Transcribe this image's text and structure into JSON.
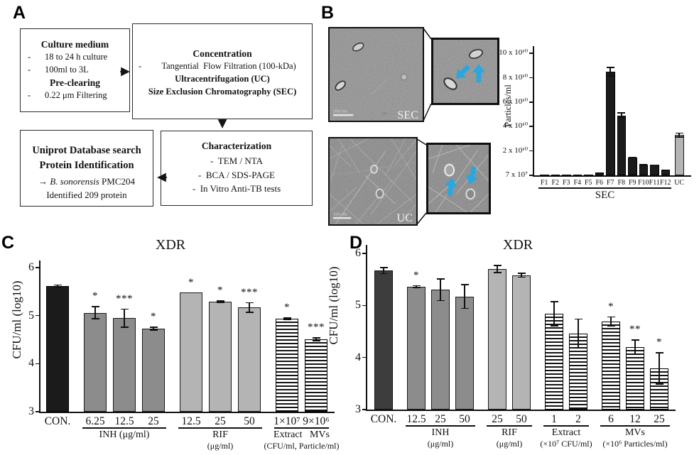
{
  "colors": {
    "bar_black": "#1b1b1b",
    "bar_dark_control": "#3d3d3d",
    "bar_dark_gray": "#8c8c8c",
    "bar_light_gray": "#b4b4b4",
    "hatch_stripe": "#141414",
    "vesicle_arrow_blue": "#2AA7DF",
    "em_background": "#7d7d7d"
  },
  "panels": {
    "a": {
      "label": "A",
      "dash": "-",
      "box_culture": {
        "title": "Culture medium",
        "item1": "18 to 24 h culture",
        "item2": "100ml to 3L",
        "subtitle": "Pre-clearing",
        "item3": "0.22 μm Filtering"
      },
      "box_concentration": {
        "title": "Concentration",
        "item1": "Tangential  Flow Filtration (100-kDa)",
        "line2": "Ultracentrifugation (UC)",
        "line3": "Size Exclusion Chromatography (SEC)"
      },
      "box_uniprot": {
        "line1": "Uniprot Database search",
        "line2": "Protein Identification",
        "arrow": "→",
        "species": "B. sonorensis",
        "strain": " PMC204",
        "line4": "Identified 209 protein"
      },
      "box_characterization": {
        "title": "Characterization",
        "item1": "TEM / NTA",
        "item2": "BCA / SDS-PAGE",
        "item3": "In Vitro Anti-TB tests"
      }
    },
    "b": {
      "label": "B",
      "sec_label": "SEC",
      "sec_scale": "200 nm",
      "uc_label": "UC",
      "uc_scale": "100 nm",
      "ylabel": "Particles/ml"
    },
    "c": {
      "label": "C",
      "title": "XDR",
      "ylabel": "CFU/ml (log10)"
    },
    "d": {
      "label": "D",
      "title": "XDR",
      "ylabel": "CFU/ml (log10)"
    }
  },
  "chart_data": [
    {
      "id": "chart-b",
      "type": "bar",
      "title": "",
      "ylabel": "Particles/ml",
      "ylim": [
        0,
        10
      ],
      "unit_note": "bar values in ×10¹⁰ particles/ml; baseline tick is 7 × 10⁷",
      "yticks": [
        {
          "v": 10,
          "label": "10 x 10¹⁰"
        },
        {
          "v": 8,
          "label": "8 x 10¹⁰"
        },
        {
          "v": 6,
          "label": "6 x 10¹⁰"
        },
        {
          "v": 4,
          "label": "4 x 10¹⁰"
        },
        {
          "v": 2,
          "label": "2 x 10¹⁰"
        },
        {
          "v": 0,
          "label": "7 x 10⁷"
        }
      ],
      "bars": [
        {
          "label": "F1",
          "value": 0.06,
          "err": 0,
          "sig": "",
          "style": "black",
          "group": "SEC"
        },
        {
          "label": "F2",
          "value": 0.08,
          "err": 0,
          "sig": "",
          "style": "black",
          "group": "SEC"
        },
        {
          "label": "F3",
          "value": 0.05,
          "err": 0,
          "sig": "",
          "style": "black",
          "group": "SEC"
        },
        {
          "label": "F4",
          "value": 0.07,
          "err": 0,
          "sig": "",
          "style": "black",
          "group": "SEC"
        },
        {
          "label": "F5",
          "value": 0.05,
          "err": 0,
          "sig": "",
          "style": "black",
          "group": "SEC"
        },
        {
          "label": "F6",
          "value": 0.25,
          "err": 0,
          "sig": "",
          "style": "black",
          "group": "SEC"
        },
        {
          "label": "F7",
          "value": 8.5,
          "err": 0.4,
          "sig": "",
          "style": "black",
          "group": "SEC"
        },
        {
          "label": "F8",
          "value": 4.9,
          "err": 0.25,
          "sig": "",
          "style": "black",
          "group": "SEC"
        },
        {
          "label": "F9",
          "value": 1.45,
          "err": 0.07,
          "sig": "",
          "style": "black",
          "group": "SEC"
        },
        {
          "label": "F10",
          "value": 0.9,
          "err": 0.05,
          "sig": "",
          "style": "black",
          "group": "SEC"
        },
        {
          "label": "F11",
          "value": 0.85,
          "err": 0.05,
          "sig": "",
          "style": "black",
          "group": "SEC"
        },
        {
          "label": "F12",
          "value": 0.45,
          "err": 0,
          "sig": "",
          "style": "black",
          "group": "SEC"
        },
        {
          "label": "UC",
          "value": 3.3,
          "err": 0.2,
          "sig": "",
          "style": "lightgray",
          "group": "UC"
        }
      ],
      "groups": [
        {
          "name": "SEC",
          "sub": "",
          "from": 0,
          "to": 11
        }
      ]
    },
    {
      "id": "chart-c",
      "type": "bar",
      "title": "XDR",
      "ylabel": "CFU/ml (log10)",
      "ylim": [
        3,
        6
      ],
      "yticks": [
        {
          "v": 6,
          "label": "6"
        },
        {
          "v": 5,
          "label": "5"
        },
        {
          "v": 4,
          "label": "4"
        },
        {
          "v": 3,
          "label": "3"
        }
      ],
      "bars": [
        {
          "label": "CON.",
          "value": 5.61,
          "err": 0.04,
          "sig": "",
          "style": "black",
          "group": "CON"
        },
        {
          "label": "6.25",
          "value": 5.06,
          "err": 0.14,
          "sig": "*",
          "style": "darkgray",
          "group": "INH"
        },
        {
          "label": "12.5",
          "value": 4.95,
          "err": 0.2,
          "sig": "***",
          "style": "darkgray",
          "group": "INH"
        },
        {
          "label": "25",
          "value": 4.73,
          "err": 0.04,
          "sig": "*",
          "style": "darkgray",
          "group": "INH"
        },
        {
          "label": "12.5",
          "value": 5.48,
          "err": 0,
          "sig": "*",
          "style": "lightgray",
          "group": "RIF"
        },
        {
          "label": "25",
          "value": 5.29,
          "err": 0.03,
          "sig": "*",
          "style": "lightgray",
          "group": "RIF"
        },
        {
          "label": "50",
          "value": 5.17,
          "err": 0.11,
          "sig": "***",
          "style": "lightgray",
          "group": "RIF"
        },
        {
          "label": "1×10⁷",
          "value": 4.93,
          "err": 0.03,
          "sig": "*",
          "style": "hatched",
          "group": "EXMV"
        },
        {
          "label": "9×10⁶",
          "value": 4.51,
          "err": 0.04,
          "sig": "***",
          "style": "hatched",
          "group": "EXMV"
        }
      ],
      "groups": [
        {
          "name": "INH (μg/ml)",
          "sub": "",
          "from": 1,
          "to": 3
        },
        {
          "name": "RIF",
          "sub": "(μg/ml)",
          "from": 4,
          "to": 6
        },
        {
          "name": "Extract   MVs",
          "sub": "(CFU/ml, Particle/ml)",
          "from": 7,
          "to": 8
        }
      ]
    },
    {
      "id": "chart-d",
      "type": "bar",
      "title": "XDR",
      "ylabel": "CFU/ml (log10)",
      "ylim": [
        3,
        6
      ],
      "yticks": [
        {
          "v": 6,
          "label": "6"
        },
        {
          "v": 5,
          "label": "5"
        },
        {
          "v": 4,
          "label": "4"
        },
        {
          "v": 3,
          "label": "3"
        }
      ],
      "bars": [
        {
          "label": "CON.",
          "value": 5.67,
          "err": 0.07,
          "sig": "",
          "style": "dark",
          "group": "CON"
        },
        {
          "label": "12.5",
          "value": 5.36,
          "err": 0.03,
          "sig": "*",
          "style": "darkgray",
          "group": "INH"
        },
        {
          "label": "25",
          "value": 5.3,
          "err": 0.22,
          "sig": "",
          "style": "darkgray",
          "group": "INH"
        },
        {
          "label": "50",
          "value": 5.17,
          "err": 0.24,
          "sig": "",
          "style": "darkgray",
          "group": "INH"
        },
        {
          "label": "25",
          "value": 5.7,
          "err": 0.08,
          "sig": "",
          "style": "lightgray",
          "group": "RIF"
        },
        {
          "label": "50",
          "value": 5.58,
          "err": 0.05,
          "sig": "",
          "style": "lightgray",
          "group": "RIF"
        },
        {
          "label": "1",
          "value": 4.84,
          "err": 0.24,
          "sig": "",
          "style": "hatched",
          "group": "Extract"
        },
        {
          "label": "2",
          "value": 4.46,
          "err": 0.29,
          "sig": "",
          "style": "hatched",
          "group": "Extract"
        },
        {
          "label": "6",
          "value": 4.69,
          "err": 0.1,
          "sig": "*",
          "style": "hatched",
          "group": "MVs"
        },
        {
          "label": "12",
          "value": 4.2,
          "err": 0.15,
          "sig": "**",
          "style": "hatched",
          "group": "MVs"
        },
        {
          "label": "25",
          "value": 3.79,
          "err": 0.31,
          "sig": "*",
          "style": "hatched",
          "group": "MVs"
        }
      ],
      "groups": [
        {
          "name": "INH",
          "sub": "(μg/ml)",
          "from": 1,
          "to": 3
        },
        {
          "name": "RIF",
          "sub": "(μg/ml)",
          "from": 4,
          "to": 5
        },
        {
          "name": "Extract",
          "sub": "(×10⁷ CFU/ml)",
          "from": 6,
          "to": 7
        },
        {
          "name": "MVs",
          "sub": "(×10⁶ Particles/ml)",
          "from": 8,
          "to": 10
        }
      ]
    }
  ]
}
